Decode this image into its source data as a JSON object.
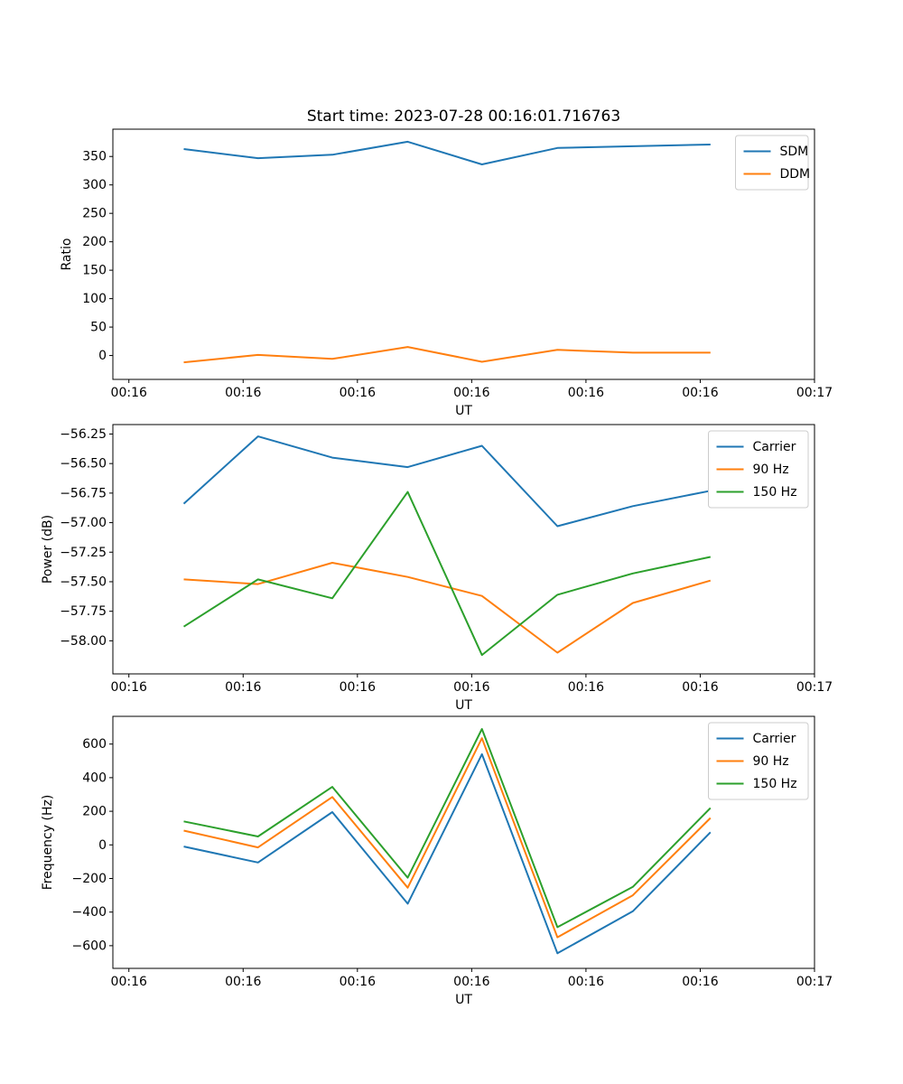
{
  "figure": {
    "background": "#ffffff",
    "frame_color": "#000000",
    "legend_edge_color": "#cccccc"
  },
  "chart_data": [
    {
      "type": "line",
      "title": "Start time: 2023-07-28 00:16:01.716763",
      "xlabel": "UT",
      "ylabel": "Ratio",
      "grid": false,
      "legend_position": "upper right",
      "x_seconds_after_00_16": [
        4.8,
        11.3,
        17.8,
        24.4,
        30.9,
        37.5,
        44.1,
        50.9
      ],
      "xlim": [
        -1.4,
        60
      ],
      "ylim": [
        -42,
        398
      ],
      "xticks": {
        "values": [
          0,
          10,
          20,
          30,
          40,
          50,
          60
        ],
        "labels": [
          "00:16",
          "00:16",
          "00:16",
          "00:16",
          "00:16",
          "00:16",
          "00:17"
        ]
      },
      "yticks": {
        "values": [
          0,
          50,
          100,
          150,
          200,
          250,
          300,
          350
        ],
        "labels": [
          "0",
          "50",
          "100",
          "150",
          "200",
          "250",
          "300",
          "350"
        ]
      },
      "series": [
        {
          "name": "SDM",
          "color": "#1f77b4",
          "values": [
            363,
            347,
            353,
            376,
            336,
            365,
            368,
            371
          ]
        },
        {
          "name": "DDM",
          "color": "#ff7f0e",
          "values": [
            -12,
            1,
            -6,
            15,
            -11,
            10,
            5,
            5
          ]
        }
      ]
    },
    {
      "type": "line",
      "title": "",
      "xlabel": "UT",
      "ylabel": "Power (dB)",
      "grid": false,
      "legend_position": "upper right",
      "x_seconds_after_00_16": [
        4.8,
        11.3,
        17.8,
        24.4,
        30.9,
        37.5,
        44.1,
        50.9
      ],
      "xlim": [
        -1.4,
        60
      ],
      "ylim": [
        -58.28,
        -56.17
      ],
      "xticks": {
        "values": [
          0,
          10,
          20,
          30,
          40,
          50,
          60
        ],
        "labels": [
          "00:16",
          "00:16",
          "00:16",
          "00:16",
          "00:16",
          "00:16",
          "00:17"
        ]
      },
      "yticks": {
        "values": [
          -58.0,
          -57.75,
          -57.5,
          -57.25,
          -57.0,
          -56.75,
          -56.5,
          -56.25
        ],
        "labels": [
          "−58.00",
          "−57.75",
          "−57.50",
          "−57.25",
          "−57.00",
          "−56.75",
          "−56.50",
          "−56.25"
        ]
      },
      "series": [
        {
          "name": "Carrier",
          "color": "#1f77b4",
          "values": [
            -56.84,
            -56.27,
            -56.45,
            -56.53,
            -56.35,
            -57.03,
            -56.86,
            -56.73
          ]
        },
        {
          "name": "90 Hz",
          "color": "#ff7f0e",
          "values": [
            -57.48,
            -57.52,
            -57.34,
            -57.46,
            -57.62,
            -58.1,
            -57.68,
            -57.49
          ]
        },
        {
          "name": "150 Hz",
          "color": "#2ca02c",
          "values": [
            -57.88,
            -57.48,
            -57.64,
            -56.74,
            -58.12,
            -57.61,
            -57.43,
            -57.29
          ]
        }
      ]
    },
    {
      "type": "line",
      "title": "",
      "xlabel": "UT",
      "ylabel": "Frequency (Hz)",
      "grid": false,
      "legend_position": "upper right",
      "x_seconds_after_00_16": [
        4.8,
        11.3,
        17.8,
        24.4,
        30.9,
        37.5,
        44.1,
        50.9
      ],
      "xlim": [
        -1.4,
        60
      ],
      "ylim": [
        -735,
        765
      ],
      "xticks": {
        "values": [
          0,
          10,
          20,
          30,
          40,
          50,
          60
        ],
        "labels": [
          "00:16",
          "00:16",
          "00:16",
          "00:16",
          "00:16",
          "00:16",
          "00:17"
        ]
      },
      "yticks": {
        "values": [
          -600,
          -400,
          -200,
          0,
          200,
          400,
          600
        ],
        "labels": [
          "−600",
          "−400",
          "−200",
          "0",
          "200",
          "400",
          "600"
        ]
      },
      "series": [
        {
          "name": "Carrier",
          "color": "#1f77b4",
          "values": [
            -10,
            -105,
            195,
            -350,
            540,
            -645,
            -395,
            75
          ]
        },
        {
          "name": "90 Hz",
          "color": "#ff7f0e",
          "values": [
            85,
            -15,
            285,
            -255,
            635,
            -550,
            -300,
            160
          ]
        },
        {
          "name": "150 Hz",
          "color": "#2ca02c",
          "values": [
            140,
            50,
            345,
            -195,
            690,
            -490,
            -250,
            220
          ]
        }
      ]
    }
  ]
}
